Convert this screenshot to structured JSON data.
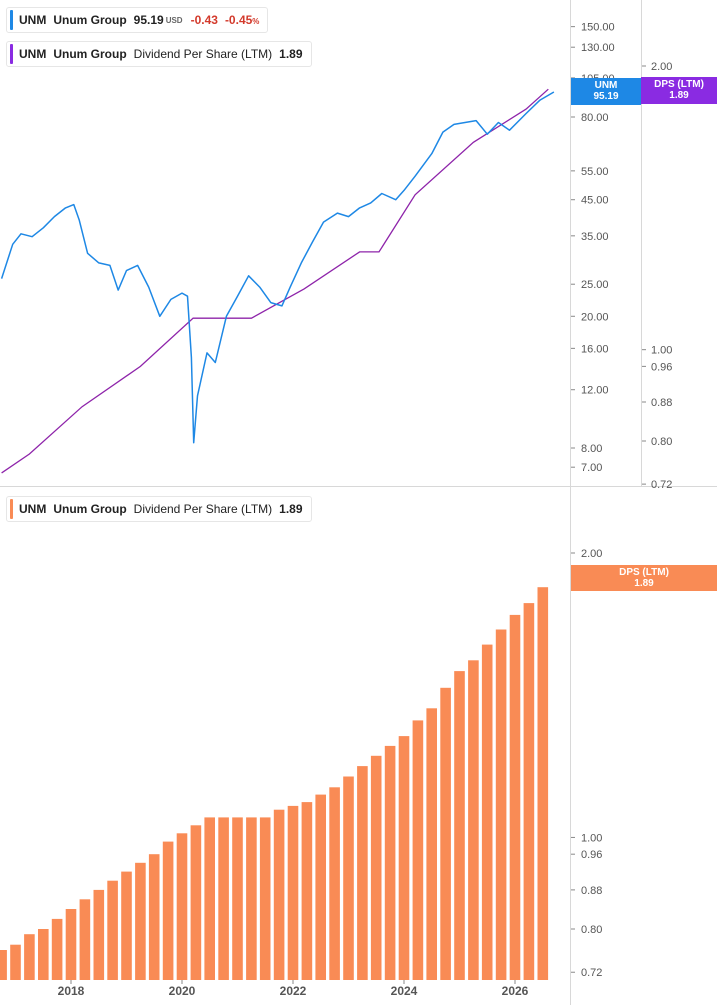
{
  "legend_price": {
    "ticker": "UNM",
    "name": "Unum Group",
    "price": "95.19",
    "currency": "USD",
    "change": "-0.43",
    "change_pct": "-0.45",
    "pct_unit": "%"
  },
  "legend_dps_top": {
    "ticker": "UNM",
    "name": "Unum Group",
    "metric": "Dividend Per Share (LTM)",
    "value": "1.89"
  },
  "legend_dps_bottom": {
    "ticker": "UNM",
    "name": "Unum Group",
    "metric": "Dividend Per Share (LTM)",
    "value": "1.89"
  },
  "badges": {
    "price": {
      "line1": "UNM",
      "line2": "95.19"
    },
    "dps_top": {
      "line1": "DPS (LTM)",
      "line2": "1.89"
    },
    "dps_bottom": {
      "line1": "DPS (LTM)",
      "line2": "1.89"
    }
  },
  "colors": {
    "price_line": "#1e88e5",
    "dps_line": "#8e24aa",
    "dps_badge": "#8a2be2",
    "bars": "#f98b55",
    "grid": "#d8d8d8",
    "axis_text": "#555555"
  },
  "chart_data": [
    {
      "type": "line",
      "title": "",
      "scale": "log",
      "series": [
        {
          "name": "UNM",
          "axis": "price",
          "points": [
            [
              2016.75,
              26.0
            ],
            [
              2016.95,
              33.0
            ],
            [
              2017.1,
              35.5
            ],
            [
              2017.3,
              34.8
            ],
            [
              2017.5,
              37.0
            ],
            [
              2017.7,
              40.0
            ],
            [
              2017.9,
              42.5
            ],
            [
              2018.05,
              43.5
            ],
            [
              2018.15,
              39.0
            ],
            [
              2018.3,
              31.0
            ],
            [
              2018.5,
              29.0
            ],
            [
              2018.7,
              28.5
            ],
            [
              2018.85,
              24.0
            ],
            [
              2019.0,
              27.5
            ],
            [
              2019.2,
              28.5
            ],
            [
              2019.4,
              24.5
            ],
            [
              2019.6,
              20.0
            ],
            [
              2019.8,
              22.5
            ],
            [
              2020.0,
              23.5
            ],
            [
              2020.1,
              23.0
            ],
            [
              2020.17,
              15.0
            ],
            [
              2020.21,
              8.3
            ],
            [
              2020.28,
              11.5
            ],
            [
              2020.45,
              15.5
            ],
            [
              2020.6,
              14.5
            ],
            [
              2020.8,
              20.0
            ],
            [
              2021.0,
              23.0
            ],
            [
              2021.2,
              26.5
            ],
            [
              2021.4,
              24.5
            ],
            [
              2021.6,
              22.0
            ],
            [
              2021.8,
              21.5
            ],
            [
              2021.95,
              24.5
            ],
            [
              2022.15,
              29.0
            ],
            [
              2022.35,
              33.5
            ],
            [
              2022.55,
              38.5
            ],
            [
              2022.8,
              41.0
            ],
            [
              2023.0,
              40.0
            ],
            [
              2023.2,
              42.5
            ],
            [
              2023.4,
              44.0
            ],
            [
              2023.6,
              47.0
            ],
            [
              2023.85,
              45.0
            ],
            [
              2024.0,
              48.0
            ],
            [
              2024.2,
              53.0
            ],
            [
              2024.5,
              62.0
            ],
            [
              2024.7,
              72.0
            ],
            [
              2024.9,
              76.0
            ],
            [
              2025.1,
              77.0
            ],
            [
              2025.3,
              78.0
            ],
            [
              2025.5,
              71.0
            ],
            [
              2025.7,
              77.0
            ],
            [
              2025.9,
              73.0
            ],
            [
              2026.2,
              82.0
            ],
            [
              2026.45,
              90.0
            ],
            [
              2026.7,
              95.19
            ]
          ]
        },
        {
          "name": "DPS (LTM)",
          "axis": "dps",
          "points": [
            [
              2016.75,
              0.74
            ],
            [
              2017.25,
              0.775
            ],
            [
              2018.2,
              0.87
            ],
            [
              2019.25,
              0.96
            ],
            [
              2020.2,
              1.08
            ],
            [
              2021.25,
              1.08
            ],
            [
              2022.2,
              1.16
            ],
            [
              2023.2,
              1.27
            ],
            [
              2023.55,
              1.27
            ],
            [
              2024.2,
              1.46
            ],
            [
              2025.25,
              1.66
            ],
            [
              2026.2,
              1.8
            ],
            [
              2026.6,
              1.89
            ]
          ]
        }
      ],
      "price_axis": {
        "ticks": [
          7.0,
          8.0,
          12.0,
          16.0,
          20.0,
          25.0,
          35.0,
          45.0,
          55.0,
          80.0,
          105.0,
          130.0,
          150.0
        ],
        "tick_labels": [
          "7.00",
          "8.00",
          "12.00",
          "16.00",
          "20.00",
          "25.00",
          "35.00",
          "45.00",
          "55.00",
          "80.00",
          "105.00",
          "130.00",
          "150.00"
        ]
      },
      "dps_axis": {
        "ticks": [
          0.72,
          0.8,
          0.88,
          0.96,
          1.0,
          2.0
        ],
        "tick_labels": [
          "0.72",
          "0.80",
          "0.88",
          "0.96",
          "1.00",
          "2.00"
        ]
      }
    },
    {
      "type": "bar",
      "title": "",
      "scale": "log",
      "series": [
        {
          "name": "Dividend Per Share (LTM)",
          "x": [
            2016.75,
            2017.0,
            2017.25,
            2017.5,
            2017.75,
            2018.0,
            2018.25,
            2018.5,
            2018.75,
            2019.0,
            2019.25,
            2019.5,
            2019.75,
            2020.0,
            2020.25,
            2020.5,
            2020.75,
            2021.0,
            2021.25,
            2021.5,
            2021.75,
            2022.0,
            2022.25,
            2022.5,
            2022.75,
            2023.0,
            2023.25,
            2023.5,
            2023.75,
            2024.0,
            2024.25,
            2024.5,
            2024.75,
            2025.0,
            2025.25,
            2025.5,
            2025.75,
            2026.0,
            2026.25,
            2026.5
          ],
          "values": [
            0.76,
            0.77,
            0.79,
            0.8,
            0.82,
            0.84,
            0.86,
            0.88,
            0.9,
            0.92,
            0.94,
            0.96,
            0.99,
            1.01,
            1.03,
            1.05,
            1.05,
            1.05,
            1.05,
            1.05,
            1.07,
            1.08,
            1.09,
            1.11,
            1.13,
            1.16,
            1.19,
            1.22,
            1.25,
            1.28,
            1.33,
            1.37,
            1.44,
            1.5,
            1.54,
            1.6,
            1.66,
            1.72,
            1.77,
            1.84
          ]
        }
      ],
      "y_axis": {
        "ticks": [
          0.72,
          0.8,
          0.88,
          0.96,
          1.0,
          2.0
        ],
        "tick_labels": [
          "0.72",
          "0.80",
          "0.88",
          "0.96",
          "1.00",
          "2.00"
        ]
      },
      "x_axis": {
        "ticks": [
          2018,
          2020,
          2022,
          2024,
          2026
        ],
        "tick_labels": [
          "2018",
          "2020",
          "2022",
          "2024",
          "2026"
        ]
      }
    }
  ]
}
